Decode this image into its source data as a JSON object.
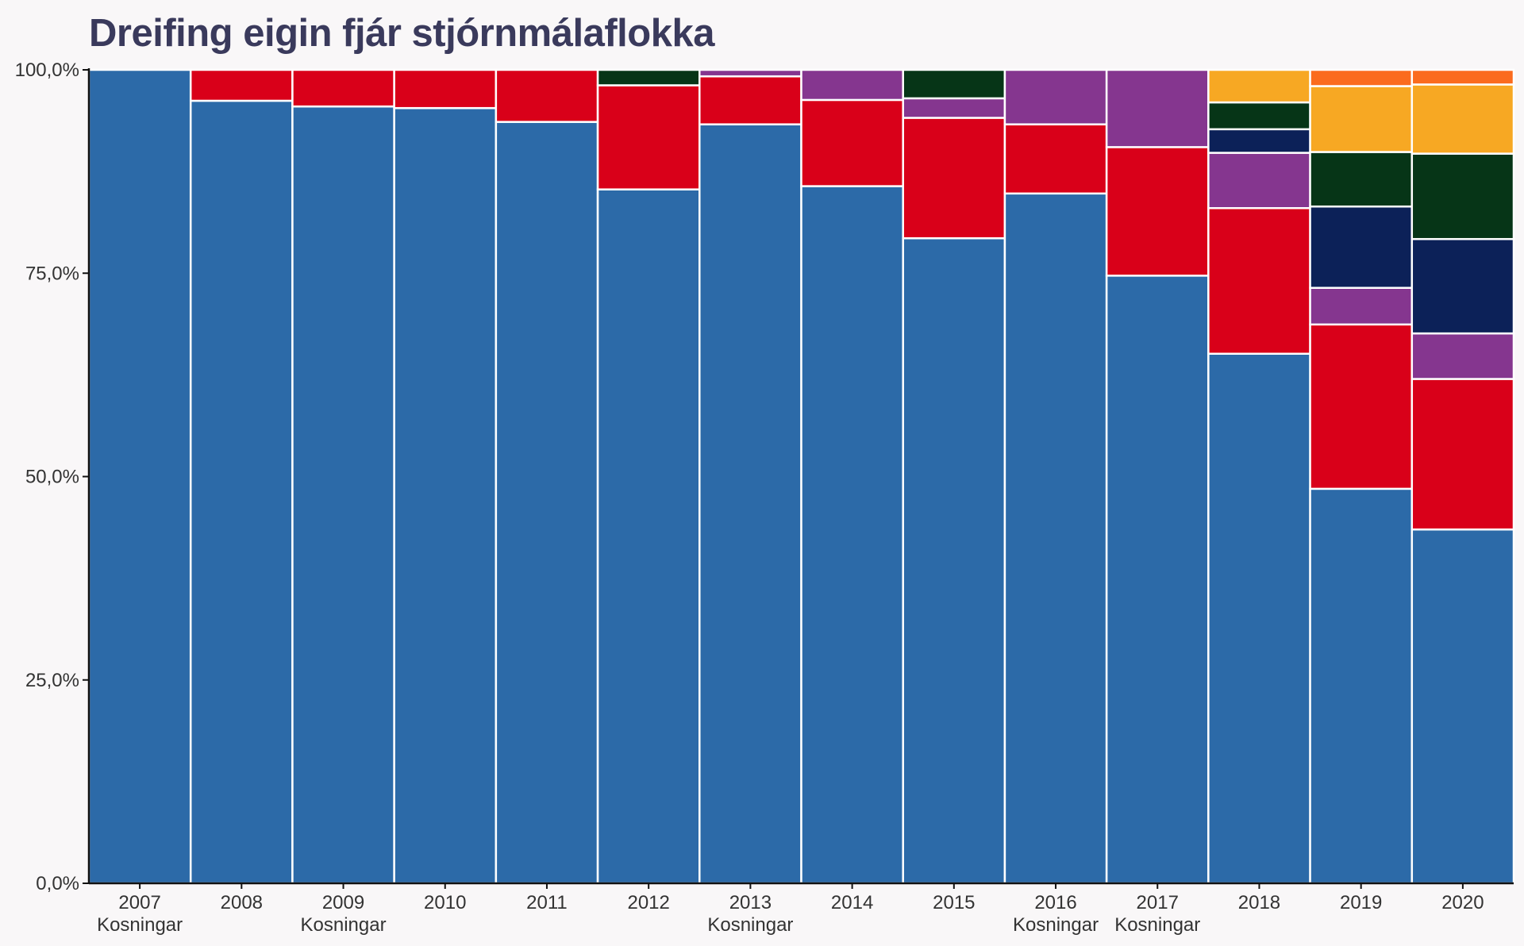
{
  "chart_data": {
    "type": "bar",
    "stacked": "percent",
    "title": "Dreifing eigin fjár stjórnmálaflokka",
    "xlabel": "",
    "ylabel": "",
    "ylim": [
      0,
      100
    ],
    "y_ticks": [
      "0,0%",
      "25,0%",
      "50,0%",
      "75,0%",
      "100,0%"
    ],
    "y_tick_values": [
      0,
      25,
      50,
      75,
      100
    ],
    "categories": [
      "2007",
      "2008",
      "2009",
      "2010",
      "2011",
      "2012",
      "2013",
      "2014",
      "2015",
      "2016",
      "2017",
      "2018",
      "2019",
      "2020"
    ],
    "sublabels": [
      "Kosningar",
      "",
      "Kosningar",
      "",
      "",
      "",
      "Kosningar",
      "",
      "",
      "Kosningar",
      "Kosningar",
      "",
      "",
      ""
    ],
    "series": [
      {
        "color": "#2c6aa8",
        "values": [
          100,
          96.2,
          95.5,
          95.3,
          93.6,
          85.3,
          93.3,
          85.7,
          79.3,
          84.8,
          74.7,
          65.1,
          48.5,
          43.5
        ]
      },
      {
        "color": "#d90019",
        "values": [
          0,
          3.8,
          4.5,
          4.7,
          6.4,
          12.8,
          5.9,
          10.6,
          14.8,
          8.5,
          15.8,
          17.9,
          20.2,
          18.5
        ]
      },
      {
        "color": "#85368f",
        "values": [
          0,
          0,
          0,
          0,
          0,
          0,
          0.8,
          3.7,
          2.4,
          6.7,
          9.5,
          6.8,
          4.5,
          5.6
        ]
      },
      {
        "color": "#0c2158",
        "values": [
          0,
          0,
          0,
          0,
          0,
          0,
          0,
          0,
          0,
          0,
          0,
          2.9,
          10,
          11.6
        ]
      },
      {
        "color": "#063517",
        "values": [
          0,
          0,
          0,
          0,
          0,
          1.9,
          0,
          0,
          3.5,
          0,
          0,
          3.3,
          6.7,
          10.5
        ]
      },
      {
        "color": "#f7a823",
        "values": [
          0,
          0,
          0,
          0,
          0,
          0,
          0,
          0,
          0,
          0,
          0,
          4,
          8.1,
          8.5
        ]
      },
      {
        "color": "#fb6b1e",
        "values": [
          0,
          0,
          0,
          0,
          0,
          0,
          0,
          0,
          0,
          0,
          0,
          0,
          2,
          1.8
        ]
      }
    ],
    "grid": false,
    "legend": "none"
  }
}
